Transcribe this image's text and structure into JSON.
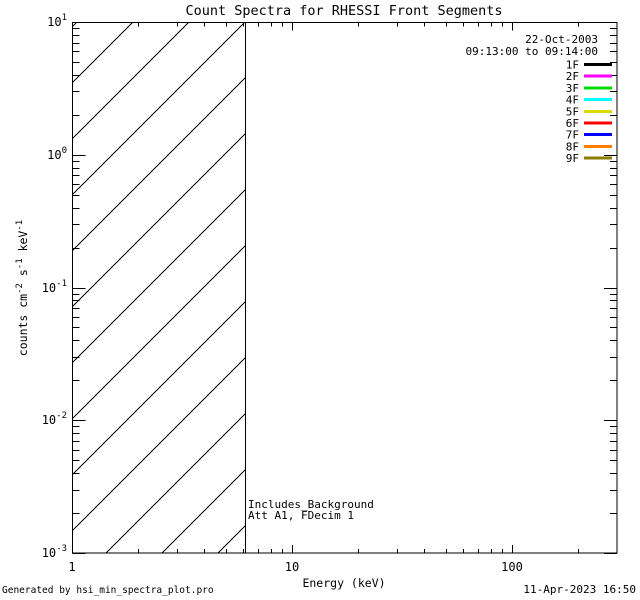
{
  "title": "Count Spectra for RHESSI Front Segments",
  "footer": {
    "left": "Generated by hsi_min_spectra_plot.pro",
    "right": "11-Apr-2023 16:50"
  },
  "chart_data": {
    "type": "line",
    "title": "Count Spectra for RHESSI Front Segments",
    "xlabel": "Energy (keV)",
    "ylabel": "counts cm^-2 s^-1 keV^-1",
    "ylabel_parts": {
      "t1": "counts cm",
      "e1": "-2",
      "t2": " s",
      "e2": "-1",
      "t3": " keV",
      "e3": "-1"
    },
    "xscale": "log",
    "yscale": "log",
    "xlim": [
      1,
      300
    ],
    "ylim": [
      0.001,
      10
    ],
    "grid": false,
    "x_ticks": [
      {
        "value": 1,
        "label": "1"
      },
      {
        "value": 10,
        "label": "10"
      },
      {
        "value": 100,
        "label": "100"
      }
    ],
    "y_ticks": [
      {
        "value": 10,
        "base": "10",
        "exp": "1"
      },
      {
        "value": 1,
        "base": "10",
        "exp": "0"
      },
      {
        "value": 0.1,
        "base": "10",
        "exp": "-1"
      },
      {
        "value": 0.01,
        "base": "10",
        "exp": "-2"
      },
      {
        "value": 0.001,
        "base": "10",
        "exp": "-3"
      }
    ],
    "legend": {
      "position": "top-right",
      "date": "22-Oct-2003",
      "timerange": "09:13:00 to 09:14:00",
      "entries": [
        {
          "name": "1F",
          "color": "#000000"
        },
        {
          "name": "2F",
          "color": "#FF00FF"
        },
        {
          "name": "3F",
          "color": "#00DD00"
        },
        {
          "name": "4F",
          "color": "#00FFFF"
        },
        {
          "name": "5F",
          "color": "#DBDB00"
        },
        {
          "name": "6F",
          "color": "#FF0000"
        },
        {
          "name": "7F",
          "color": "#0000FF"
        },
        {
          "name": "8F",
          "color": "#FF8000"
        },
        {
          "name": "9F",
          "color": "#8B7D00"
        }
      ]
    },
    "annotations": [
      "Includes_Background",
      "Att A1, FDecim 1"
    ],
    "hatch_region": {
      "x_range_kev": [
        1,
        6.1
      ],
      "y_range": [
        0.001,
        10
      ],
      "style": "diagonal-hatch-45deg"
    },
    "attenuator_line_kev": 6.1,
    "series_note": "no spectra curves plotted; plot area empty except hatched no-data region",
    "series": []
  }
}
